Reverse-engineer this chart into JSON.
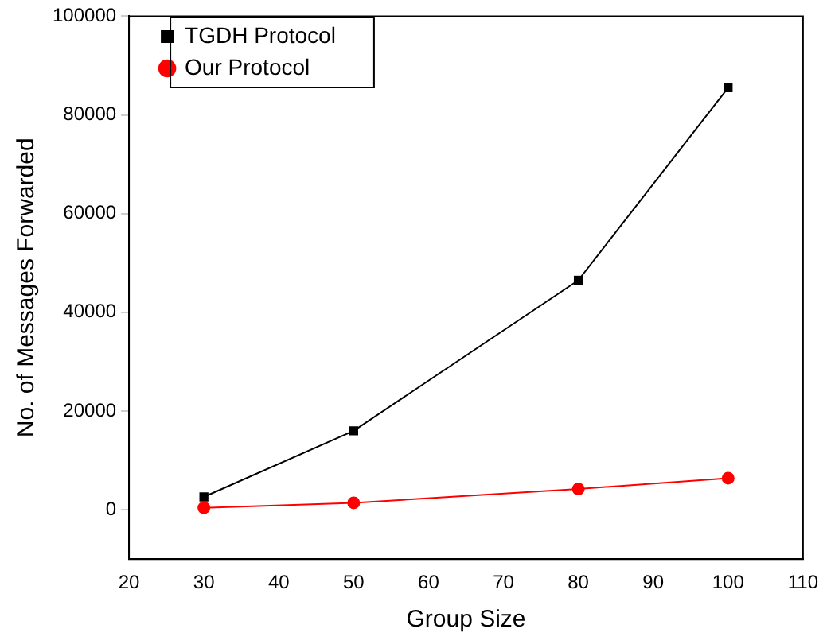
{
  "chart_data": {
    "type": "line",
    "xlabel": "Group Size",
    "ylabel": "No. of Messages Forwarded",
    "x": [
      30,
      50,
      80,
      100
    ],
    "series": [
      {
        "name": "TGDH Protocol",
        "color": "#000000",
        "marker": "square",
        "values": [
          2600,
          16000,
          46500,
          85500
        ]
      },
      {
        "name": "Our Protocol",
        "color": "#ff0000",
        "marker": "circle",
        "values": [
          400,
          1400,
          4200,
          6400
        ]
      }
    ],
    "xlim": [
      20,
      110
    ],
    "xticks": [
      20,
      30,
      40,
      50,
      60,
      70,
      80,
      90,
      100,
      110
    ],
    "ylim": [
      -10000,
      100000
    ],
    "yticks": [
      0,
      20000,
      40000,
      60000,
      80000,
      100000
    ],
    "grid": false,
    "legend": "top left",
    "line_style": "solid"
  }
}
